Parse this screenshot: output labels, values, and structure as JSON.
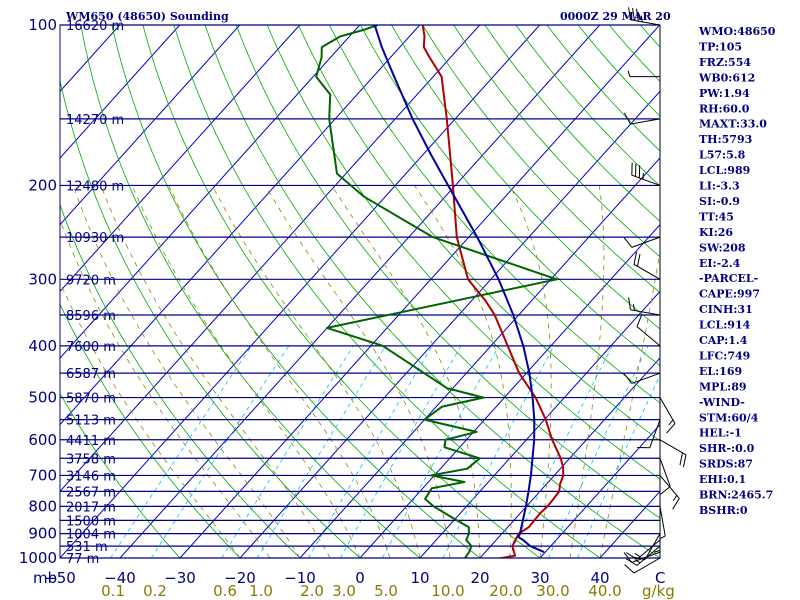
{
  "header": {
    "title": "WM650 (48650) Sounding",
    "time": "0000Z 29 MAR 20"
  },
  "colors": {
    "frame": "#000080",
    "isobar": "#00008b",
    "isotherm": "#0000cd",
    "dry_adiabat": "#00aa00",
    "moist_adiabat": "#8b8b00",
    "mixing_ratio": "#00bfff",
    "temperature": "#b00000",
    "dewpoint": "#006400",
    "parcel": "#0000a0",
    "wind": "#000000"
  },
  "chart_data": {
    "type": "line",
    "subtype": "skew-T log-p",
    "title": "WM650 (48650) Sounding",
    "valid_time": "0000Z 29 MAR 20",
    "pressure_unit": "mb",
    "pressure_range": [
      1000,
      100
    ],
    "temperature_range": [
      -50,
      50
    ],
    "pressure_ticks": [
      100,
      200,
      300,
      400,
      500,
      600,
      700,
      800,
      900,
      1000
    ],
    "temperature_ticks": [
      -50,
      -40,
      -30,
      -20,
      -10,
      0,
      10,
      20,
      30,
      40
    ],
    "temperature_tick_labels": [
      "−50",
      "−40",
      "−30",
      "−20",
      "−10",
      "0",
      "10",
      "20",
      "30",
      "40"
    ],
    "corner_label_left": "mb",
    "corner_label_right": "C",
    "heights": [
      {
        "p": 100,
        "label": "16620 m"
      },
      {
        "p": 150,
        "label": "14270 m"
      },
      {
        "p": 200,
        "label": "12480 m"
      },
      {
        "p": 250,
        "label": "10930 m"
      },
      {
        "p": 300,
        "label": "9720 m"
      },
      {
        "p": 350,
        "label": "8596 m"
      },
      {
        "p": 400,
        "label": "7600 m"
      },
      {
        "p": 450,
        "label": "6587 m"
      },
      {
        "p": 500,
        "label": "5870 m"
      },
      {
        "p": 550,
        "label": "5113 m"
      },
      {
        "p": 600,
        "label": "4411 m"
      },
      {
        "p": 650,
        "label": "3758 m"
      },
      {
        "p": 700,
        "label": "3146 m"
      },
      {
        "p": 750,
        "label": "2567 m"
      },
      {
        "p": 800,
        "label": "2017 m"
      },
      {
        "p": 850,
        "label": "1500 m"
      },
      {
        "p": 900,
        "label": "1004 m"
      },
      {
        "p": 950,
        "label": "531 m"
      },
      {
        "p": 1000,
        "label": "77 m"
      }
    ],
    "mixing_ratio_labels": [
      "0.1",
      "0.2",
      "0.6",
      "1.0",
      "2.0",
      "3.0",
      "5.0",
      "10.0",
      "20.0",
      "30.0",
      "40.0"
    ],
    "mixing_ratio_unit": "g/kg",
    "series": [
      {
        "name": "Temperature",
        "points": [
          [
            1002,
            23.2
          ],
          [
            990,
            25.5
          ],
          [
            975,
            24.8
          ],
          [
            950,
            23.6
          ],
          [
            925,
            23.2
          ],
          [
            900,
            22.8
          ],
          [
            875,
            23.5
          ],
          [
            850,
            23.4
          ],
          [
            825,
            23.3
          ],
          [
            800,
            23.5
          ],
          [
            775,
            23.4
          ],
          [
            750,
            23.2
          ],
          [
            725,
            22.2
          ],
          [
            700,
            21.5
          ],
          [
            675,
            20.2
          ],
          [
            650,
            18.5
          ],
          [
            600,
            14.3
          ],
          [
            550,
            10.2
          ],
          [
            500,
            5.2
          ],
          [
            450,
            -1.2
          ],
          [
            400,
            -7.2
          ],
          [
            350,
            -14.0
          ],
          [
            330,
            -17.5
          ],
          [
            300,
            -23.8
          ],
          [
            250,
            -32.0
          ],
          [
            200,
            -40.4
          ],
          [
            175,
            -45.5
          ],
          [
            150,
            -51.4
          ],
          [
            125,
            -58.6
          ],
          [
            115,
            -63.5
          ],
          [
            110,
            -66.0
          ],
          [
            105,
            -67.5
          ],
          [
            100,
            -69.5
          ]
        ]
      },
      {
        "name": "Dewpoint",
        "points": [
          [
            1002,
            17.5
          ],
          [
            975,
            17.3
          ],
          [
            950,
            16.8
          ],
          [
            925,
            15.0
          ],
          [
            900,
            14.5
          ],
          [
            875,
            13.5
          ],
          [
            850,
            10.5
          ],
          [
            800,
            4.5
          ],
          [
            775,
            2.0
          ],
          [
            740,
            1.5
          ],
          [
            720,
            6.0
          ],
          [
            700,
            -0.5
          ],
          [
            680,
            4.5
          ],
          [
            650,
            5.0
          ],
          [
            620,
            -2.5
          ],
          [
            600,
            -3.5
          ],
          [
            580,
            0.5
          ],
          [
            550,
            -10.0
          ],
          [
            520,
            -9.0
          ],
          [
            500,
            -3.5
          ],
          [
            480,
            -11.0
          ],
          [
            400,
            -28.0
          ],
          [
            370,
            -40.0
          ],
          [
            300,
            -9.0
          ],
          [
            250,
            -36.0
          ],
          [
            210,
            -53.5
          ],
          [
            190,
            -61.5
          ],
          [
            150,
            -71.0
          ],
          [
            135,
            -74.5
          ],
          [
            125,
            -79.5
          ],
          [
            115,
            -81.5
          ],
          [
            110,
            -83.0
          ],
          [
            105,
            -81.5
          ],
          [
            102,
            -78.5
          ],
          [
            100,
            -77.0
          ]
        ]
      },
      {
        "name": "Parcel",
        "points": [
          [
            975,
            29.8
          ],
          [
            950,
            26.6
          ],
          [
            925,
            24.5
          ],
          [
            914,
            23.3
          ],
          [
            900,
            23.0
          ],
          [
            850,
            21.5
          ],
          [
            800,
            19.9
          ],
          [
            750,
            18.1
          ],
          [
            700,
            16.1
          ],
          [
            650,
            13.8
          ],
          [
            600,
            11.3
          ],
          [
            550,
            8.3
          ],
          [
            500,
            4.7
          ],
          [
            450,
            0.5
          ],
          [
            400,
            -4.6
          ],
          [
            350,
            -10.9
          ],
          [
            300,
            -18.7
          ],
          [
            250,
            -28.6
          ],
          [
            200,
            -41.2
          ],
          [
            175,
            -48.7
          ],
          [
            150,
            -57.1
          ],
          [
            125,
            -66.5
          ],
          [
            110,
            -73.0
          ],
          [
            100,
            -77.5
          ]
        ]
      }
    ],
    "wind_barbs": [
      {
        "p": 1000,
        "dir": 240,
        "kt": 10
      },
      {
        "p": 975,
        "dir": 250,
        "kt": 10
      },
      {
        "p": 950,
        "dir": 230,
        "kt": 15
      },
      {
        "p": 925,
        "dir": 230,
        "kt": 15
      },
      {
        "p": 900,
        "dir": 210,
        "kt": 10
      },
      {
        "p": 850,
        "dir": 180,
        "kt": 5
      },
      {
        "p": 800,
        "dir": 170,
        "kt": 5
      },
      {
        "p": 700,
        "dir": 140,
        "kt": 15
      },
      {
        "p": 650,
        "dir": 160,
        "kt": 10
      },
      {
        "p": 600,
        "dir": 120,
        "kt": 20
      },
      {
        "p": 550,
        "dir": 200,
        "kt": 10
      },
      {
        "p": 500,
        "dir": 150,
        "kt": 15
      },
      {
        "p": 450,
        "dir": 250,
        "kt": 10
      },
      {
        "p": 400,
        "dir": 310,
        "kt": 10
      },
      {
        "p": 350,
        "dir": 280,
        "kt": 15
      },
      {
        "p": 300,
        "dir": 300,
        "kt": 20
      },
      {
        "p": 250,
        "dir": 250,
        "kt": 10
      },
      {
        "p": 200,
        "dir": 290,
        "kt": 35
      },
      {
        "p": 150,
        "dir": 260,
        "kt": 10
      },
      {
        "p": 125,
        "dir": 270,
        "kt": 5
      },
      {
        "p": 100,
        "dir": 280,
        "kt": 35
      }
    ]
  },
  "indices": [
    "WMO:48650",
    "TP:105",
    "FRZ:554",
    "WB0:612",
    "PW:1.94",
    "RH:60.0",
    "MAXT:33.0",
    "TH:5793",
    "L57:5.8",
    "LCL:989",
    "LI:-3.3",
    "SI:-0.9",
    "TT:45",
    "KI:26",
    "SW:208",
    "EI:-2.4",
    "-PARCEL-",
    "CAPE:997",
    "CINH:31",
    "LCL:914",
    "CAP:1.4",
    "LFC:749",
    "EL:169",
    "MPL:89",
    "-WIND-",
    "STM:60/4",
    "HEL:-1",
    "SHR-:0.0",
    "SRDS:87",
    "EHI:0.1",
    "BRN:2465.7",
    "BSHR:0"
  ]
}
